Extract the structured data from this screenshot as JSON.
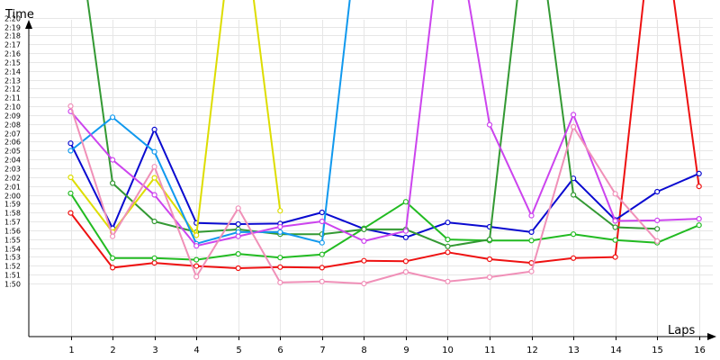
{
  "chart_data": {
    "type": "line",
    "xlabel": "Laps",
    "ylabel": "Time",
    "x": [
      1,
      2,
      3,
      4,
      5,
      6,
      7,
      8,
      9,
      10,
      11,
      12,
      13,
      14,
      15,
      16
    ],
    "xlim": [
      0,
      16.5
    ],
    "ylim": [
      1.7333,
      2.3667
    ],
    "grid": true,
    "yticks": [
      {
        "label": "1:50",
        "value": 1.8333
      },
      {
        "label": "1:51",
        "value": 1.85
      },
      {
        "label": "1:52",
        "value": 1.8667
      },
      {
        "label": "1:53",
        "value": 1.8833
      },
      {
        "label": "1:54",
        "value": 1.9
      },
      {
        "label": "1:55",
        "value": 1.9167
      },
      {
        "label": "1:56",
        "value": 1.9333
      },
      {
        "label": "1:57",
        "value": 1.95
      },
      {
        "label": "1:58",
        "value": 1.9667
      },
      {
        "label": "1:59",
        "value": 1.9833
      },
      {
        "label": "2:00",
        "value": 2.0
      },
      {
        "label": "2:01",
        "value": 2.0167
      },
      {
        "label": "2:02",
        "value": 2.0333
      },
      {
        "label": "2:03",
        "value": 2.05
      },
      {
        "label": "2:04",
        "value": 2.0667
      },
      {
        "label": "2:05",
        "value": 2.0833
      },
      {
        "label": "2:06",
        "value": 2.1
      },
      {
        "label": "2:07",
        "value": 2.1167
      },
      {
        "label": "2:08",
        "value": 2.1333
      },
      {
        "label": "2:09",
        "value": 2.15
      },
      {
        "label": "2:10",
        "value": 2.1667
      },
      {
        "label": "2:11",
        "value": 2.1833
      },
      {
        "label": "2:12",
        "value": 2.2
      },
      {
        "label": "2:13",
        "value": 2.2167
      },
      {
        "label": "2:14",
        "value": 2.2333
      },
      {
        "label": "2:15",
        "value": 2.25
      },
      {
        "label": "2:16",
        "value": 2.2667
      },
      {
        "label": "2:17",
        "value": 2.2833
      },
      {
        "label": "2:18",
        "value": 2.3
      },
      {
        "label": "2:19",
        "value": 2.3167
      },
      {
        "label": "2:20",
        "value": 2.3333
      }
    ],
    "series": [
      {
        "color": "#ee1111",
        "values": [
          1.966,
          1.863,
          1.872,
          1.866,
          1.862,
          1.864,
          1.863,
          1.876,
          1.875,
          1.892,
          1.879,
          1.872,
          1.881,
          1.883,
          2.6,
          2.016
        ]
      },
      {
        "color": "#0a0ad0",
        "values": [
          2.097,
          1.937,
          2.123,
          1.947,
          1.945,
          1.946,
          1.967,
          1.936,
          1.92,
          1.948,
          1.94,
          1.93,
          2.031,
          1.953,
          2.006,
          2.04
        ]
      },
      {
        "color": "#22bb22",
        "values": [
          2.003,
          1.881,
          1.881,
          1.878,
          1.889,
          1.882,
          1.888,
          1.937,
          1.987,
          1.916,
          1.914,
          1.914,
          1.926,
          1.915,
          1.91,
          1.943
        ]
      },
      {
        "color": "#339933",
        "values": [
          2.6,
          2.022,
          1.95,
          1.93,
          1.935,
          1.926,
          1.926,
          1.935,
          1.935,
          1.903,
          1.916,
          2.6,
          2.0,
          1.939,
          1.936,
          null
        ]
      },
      {
        "color": "#dddd00",
        "values": [
          2.033,
          1.93,
          2.032,
          1.924,
          2.6,
          1.97,
          null,
          null,
          null,
          null,
          null,
          null,
          null,
          null,
          null,
          null
        ]
      },
      {
        "color": "#1199ee",
        "values": [
          2.083,
          2.146,
          2.081,
          1.908,
          1.93,
          1.93,
          1.91,
          2.6,
          null,
          null,
          null,
          null,
          null,
          null,
          null,
          null
        ]
      },
      {
        "color": "#cc44ee",
        "values": [
          2.157,
          2.066,
          2.0,
          1.904,
          1.922,
          1.94,
          1.95,
          1.913,
          1.932,
          2.6,
          2.132,
          1.961,
          2.151,
          1.951,
          1.952,
          1.955
        ]
      },
      {
        "color": "#f090b8",
        "values": [
          2.167,
          1.922,
          2.053,
          1.846,
          1.975,
          1.835,
          1.837,
          1.833,
          1.855,
          1.837,
          1.845,
          1.856,
          2.128,
          2.002,
          1.913,
          null
        ]
      }
    ]
  }
}
